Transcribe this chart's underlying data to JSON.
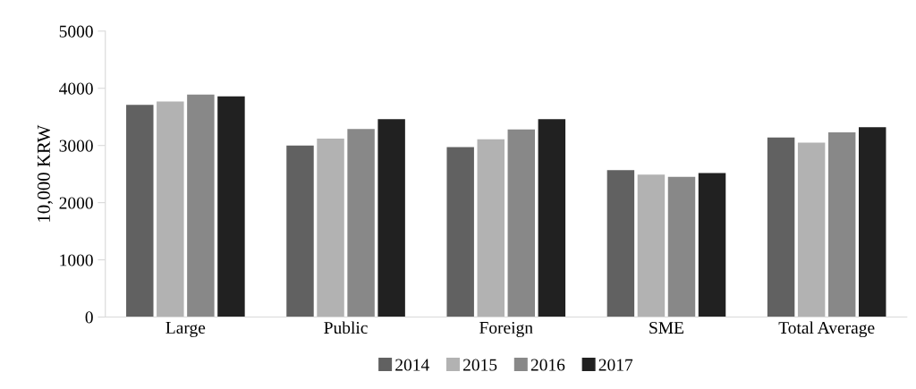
{
  "chart_data": {
    "type": "bar",
    "ylabel": "10,000 KRW",
    "categories": [
      "Large",
      "Public",
      "Foreign",
      "SME",
      "Total Average"
    ],
    "series": [
      {
        "name": "2014",
        "color": "#616161",
        "values": [
          3710,
          3000,
          2970,
          2570,
          3140
        ]
      },
      {
        "name": "2015",
        "color": "#b2b2b2",
        "values": [
          3770,
          3120,
          3110,
          2490,
          3050
        ]
      },
      {
        "name": "2016",
        "color": "#888888",
        "values": [
          3890,
          3290,
          3280,
          2450,
          3230
        ]
      },
      {
        "name": "2017",
        "color": "#212121",
        "values": [
          3860,
          3460,
          3460,
          2520,
          3320
        ]
      }
    ],
    "ylim": [
      0,
      5000
    ],
    "yticks": [
      0,
      1000,
      2000,
      3000,
      4000,
      5000
    ],
    "grid": false,
    "legend": "bottom"
  }
}
